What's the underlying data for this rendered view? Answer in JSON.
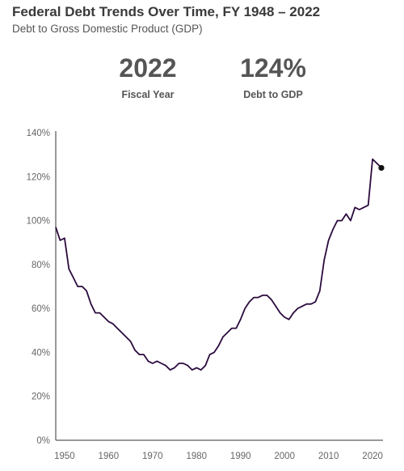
{
  "header": {
    "title": "Federal Debt Trends Over Time, FY 1948 – 2022",
    "subtitle": "Debt to Gross Domestic Product (GDP)"
  },
  "kpis": {
    "year_value": "2022",
    "year_label": "Fiscal Year",
    "debt_value": "124%",
    "debt_label": "Debt to GDP"
  },
  "colors": {
    "line": "#2b0a3d",
    "axis": "#333333"
  },
  "chart_data": {
    "type": "line",
    "title": "Federal Debt Trends Over Time, FY 1948 – 2022",
    "subtitle": "Debt to Gross Domestic Product (GDP)",
    "xlabel": "",
    "ylabel": "",
    "xlim": [
      1948,
      2022
    ],
    "ylim": [
      0,
      140
    ],
    "x_ticks": [
      1950,
      1960,
      1970,
      1980,
      1990,
      2000,
      2010,
      2020
    ],
    "x_tick_labels": [
      "1950",
      "1960",
      "1970",
      "1980",
      "1990",
      "2000",
      "2010",
      "2020"
    ],
    "y_ticks": [
      0,
      20,
      40,
      60,
      80,
      100,
      120,
      140
    ],
    "y_tick_labels": [
      "0%",
      "20%",
      "40%",
      "60%",
      "80%",
      "100%",
      "120%",
      "140%"
    ],
    "grid": false,
    "highlight_point": {
      "x": 2022,
      "y": 124
    },
    "series": [
      {
        "x": [
          1948,
          1949,
          1950,
          1951,
          1952,
          1953,
          1954,
          1955,
          1956,
          1957,
          1958,
          1959,
          1960,
          1961,
          1962,
          1963,
          1964,
          1965,
          1966,
          1967,
          1968,
          1969,
          1970,
          1971,
          1972,
          1973,
          1974,
          1975,
          1976,
          1977,
          1978,
          1979,
          1980,
          1981,
          1982,
          1983,
          1984,
          1985,
          1986,
          1987,
          1988,
          1989,
          1990,
          1991,
          1992,
          1993,
          1994,
          1995,
          1996,
          1997,
          1998,
          1999,
          2000,
          2001,
          2002,
          2003,
          2004,
          2005,
          2006,
          2007,
          2008,
          2009,
          2010,
          2011,
          2012,
          2013,
          2014,
          2015,
          2016,
          2017,
          2018,
          2019,
          2020,
          2021,
          2022
        ],
        "values": [
          97,
          91,
          92,
          78,
          74,
          70,
          70,
          68,
          62,
          58,
          58,
          56,
          54,
          53,
          51,
          49,
          47,
          45,
          41,
          39,
          39,
          36,
          35,
          36,
          35,
          34,
          32,
          33,
          35,
          35,
          34,
          32,
          33,
          32,
          34,
          39,
          40,
          43,
          47,
          49,
          51,
          51,
          55,
          60,
          63,
          65,
          65,
          66,
          66,
          64,
          61,
          58,
          56,
          55,
          58,
          60,
          61,
          62,
          62,
          63,
          68,
          82,
          91,
          96,
          100,
          100,
          103,
          100,
          106,
          105,
          106,
          107,
          128,
          126,
          124
        ]
      }
    ]
  }
}
